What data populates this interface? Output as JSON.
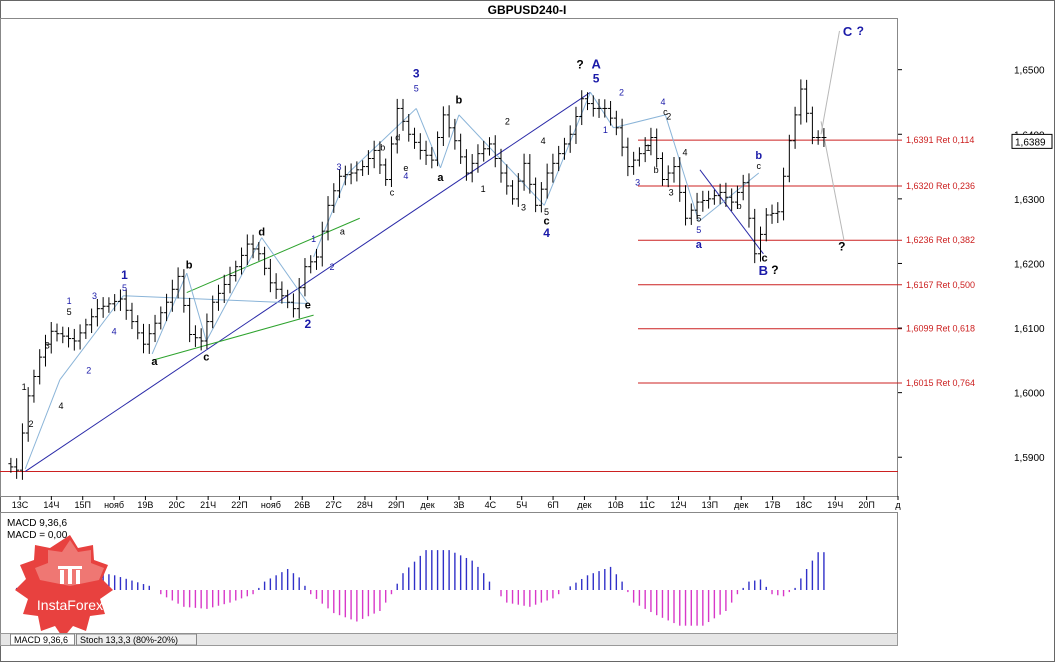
{
  "window": {
    "title": "GBPUSD240-I"
  },
  "price_panel": {
    "ylim": [
      1.584,
      1.658
    ],
    "price_ticks": [
      "1,6500",
      "1,6400",
      "1,6300",
      "1,6200",
      "1,6100",
      "1,6000",
      "1,5900"
    ],
    "current_price": "1,6389",
    "x_labels": [
      "13C",
      "14Ч",
      "15П",
      "нояб",
      "19В",
      "20С",
      "21Ч",
      "22П",
      "нояб",
      "26В",
      "27С",
      "28Ч",
      "29П",
      "дек",
      "3В",
      "4С",
      "5Ч",
      "6П",
      "дек",
      "10В",
      "11С",
      "12Ч",
      "13П",
      "дек",
      "17В",
      "18С",
      "19Ч",
      "20П",
      "д"
    ],
    "fib_levels": [
      {
        "price": 1.6391,
        "label": "1,6391 Ret 0,114"
      },
      {
        "price": 1.632,
        "label": "1,6320 Ret 0,236"
      },
      {
        "price": 1.6236,
        "label": "1,6236 Ret 0,382"
      },
      {
        "price": 1.6167,
        "label": "1,6167 Ret 0,500"
      },
      {
        "price": 1.6099,
        "label": "1,6099 Ret 0,618"
      },
      {
        "price": 1.6015,
        "label": "1,6015 Ret 0,764"
      }
    ],
    "base_level": 1.5878,
    "wave_labels": [
      {
        "text": "1",
        "bar": 0.9,
        "price": 1.6004,
        "color": "#000000",
        "size": 9
      },
      {
        "text": "2",
        "bar": 1.5,
        "price": 1.5947,
        "color": "#000000",
        "size": 9
      },
      {
        "text": "3",
        "bar": 2.9,
        "price": 1.6068,
        "color": "#000000",
        "size": 9
      },
      {
        "text": "4",
        "bar": 4.1,
        "price": 1.5975,
        "color": "#000000",
        "size": 9
      },
      {
        "text": "5",
        "bar": 4.8,
        "price": 1.612,
        "color": "#000000",
        "size": 9
      },
      {
        "text": "1",
        "bar": 4.8,
        "price": 1.6137,
        "color": "#1a1aa8",
        "size": 9
      },
      {
        "text": "2",
        "bar": 6.5,
        "price": 1.603,
        "color": "#1a1aa8",
        "size": 9
      },
      {
        "text": "3",
        "bar": 7.0,
        "price": 1.6145,
        "color": "#1a1aa8",
        "size": 9
      },
      {
        "text": "4",
        "bar": 8.7,
        "price": 1.609,
        "color": "#1a1aa8",
        "size": 9
      },
      {
        "text": "1",
        "bar": 9.6,
        "price": 1.6176,
        "color": "#1a1aa8",
        "size": 12
      },
      {
        "text": "5",
        "bar": 9.6,
        "price": 1.6157,
        "color": "#1a1aa8",
        "size": 9
      },
      {
        "text": "a",
        "bar": 12.2,
        "price": 1.6043,
        "color": "#000000",
        "size": 11
      },
      {
        "text": "b",
        "bar": 15.2,
        "price": 1.6192,
        "color": "#000000",
        "size": 11
      },
      {
        "text": "c",
        "bar": 16.7,
        "price": 1.605,
        "color": "#000000",
        "size": 11
      },
      {
        "text": "d",
        "bar": 21.5,
        "price": 1.6243,
        "color": "#000000",
        "size": 11
      },
      {
        "text": "e",
        "bar": 25.5,
        "price": 1.613,
        "color": "#000000",
        "size": 11
      },
      {
        "text": "2",
        "bar": 25.5,
        "price": 1.61,
        "color": "#1a1aa8",
        "size": 12
      },
      {
        "text": "1",
        "bar": 26.0,
        "price": 1.6233,
        "color": "#1a1aa8",
        "size": 9
      },
      {
        "text": "2",
        "bar": 27.6,
        "price": 1.619,
        "color": "#1a1aa8",
        "size": 9
      },
      {
        "text": "a",
        "bar": 28.5,
        "price": 1.6245,
        "color": "#000000",
        "size": 9
      },
      {
        "text": "3",
        "bar": 28.2,
        "price": 1.6345,
        "color": "#1a1aa8",
        "size": 9
      },
      {
        "text": "c",
        "bar": 32.8,
        "price": 1.6305,
        "color": "#000000",
        "size": 9
      },
      {
        "text": "d",
        "bar": 33.3,
        "price": 1.639,
        "color": "#000000",
        "size": 9
      },
      {
        "text": "b",
        "bar": 32.0,
        "price": 1.6375,
        "color": "#000000",
        "size": 9
      },
      {
        "text": "e",
        "bar": 34.0,
        "price": 1.6343,
        "color": "#000000",
        "size": 9
      },
      {
        "text": "4",
        "bar": 34.0,
        "price": 1.6331,
        "color": "#1a1aa8",
        "size": 9
      },
      {
        "text": "3",
        "bar": 34.9,
        "price": 1.6488,
        "color": "#1a1aa8",
        "size": 12
      },
      {
        "text": "5",
        "bar": 34.9,
        "price": 1.6466,
        "color": "#1a1aa8",
        "size": 9
      },
      {
        "text": "a",
        "bar": 37.0,
        "price": 1.6328,
        "color": "#000000",
        "size": 11
      },
      {
        "text": "b",
        "bar": 38.6,
        "price": 1.6448,
        "color": "#000000",
        "size": 11
      },
      {
        "text": "1",
        "bar": 40.7,
        "price": 1.6311,
        "color": "#000000",
        "size": 9
      },
      {
        "text": "2",
        "bar": 42.8,
        "price": 1.6415,
        "color": "#000000",
        "size": 9
      },
      {
        "text": "3",
        "bar": 44.2,
        "price": 1.6282,
        "color": "#000000",
        "size": 9
      },
      {
        "text": "4",
        "bar": 45.9,
        "price": 1.6385,
        "color": "#000000",
        "size": 9
      },
      {
        "text": "5",
        "bar": 46.2,
        "price": 1.6275,
        "color": "#000000",
        "size": 9
      },
      {
        "text": "c",
        "bar": 46.2,
        "price": 1.626,
        "color": "#000000",
        "size": 11
      },
      {
        "text": "4",
        "bar": 46.2,
        "price": 1.6241,
        "color": "#1a1aa8",
        "size": 12
      },
      {
        "text": "?",
        "bar": 49.1,
        "price": 1.6502,
        "color": "#000000",
        "size": 12
      },
      {
        "text": "A",
        "bar": 50.5,
        "price": 1.6502,
        "color": "#1a1aa8",
        "size": 13
      },
      {
        "text": "5",
        "bar": 50.5,
        "price": 1.648,
        "color": "#1a1aa8",
        "size": 12
      },
      {
        "text": "1",
        "bar": 51.3,
        "price": 1.6402,
        "color": "#1a1aa8",
        "size": 9
      },
      {
        "text": "2",
        "bar": 52.7,
        "price": 1.646,
        "color": "#1a1aa8",
        "size": 9
      },
      {
        "text": "1",
        "bar": 55.0,
        "price": 1.6374,
        "color": "#000000",
        "size": 9
      },
      {
        "text": "2",
        "bar": 56.8,
        "price": 1.6423,
        "color": "#000000",
        "size": 9
      },
      {
        "text": "3",
        "bar": 54.1,
        "price": 1.6321,
        "color": "#1a1aa8",
        "size": 9
      },
      {
        "text": "4",
        "bar": 56.3,
        "price": 1.6445,
        "color": "#1a1aa8",
        "size": 9
      },
      {
        "text": "c",
        "bar": 56.5,
        "price": 1.643,
        "color": "#000000",
        "size": 9
      },
      {
        "text": "b",
        "bar": 55.7,
        "price": 1.634,
        "color": "#000000",
        "size": 9
      },
      {
        "text": "3",
        "bar": 57.0,
        "price": 1.6305,
        "color": "#000000",
        "size": 9
      },
      {
        "text": "4",
        "bar": 58.2,
        "price": 1.6367,
        "color": "#000000",
        "size": 9
      },
      {
        "text": "5",
        "bar": 59.4,
        "price": 1.6265,
        "color": "#000000",
        "size": 9
      },
      {
        "text": "5",
        "bar": 59.4,
        "price": 1.6247,
        "color": "#1a1aa8",
        "size": 9
      },
      {
        "text": "a",
        "bar": 59.4,
        "price": 1.6224,
        "color": "#1a1aa8",
        "size": 11
      },
      {
        "text": "b",
        "bar": 62.9,
        "price": 1.6284,
        "color": "#000000",
        "size": 9
      },
      {
        "text": "c",
        "bar": 64.6,
        "price": 1.6346,
        "color": "#000000",
        "size": 9
      },
      {
        "text": "b",
        "bar": 64.6,
        "price": 1.6362,
        "color": "#1a1aa8",
        "size": 11
      },
      {
        "text": "c",
        "bar": 65.1,
        "price": 1.6203,
        "color": "#000000",
        "size": 11
      },
      {
        "text": "B",
        "bar": 65.0,
        "price": 1.6182,
        "color": "#1a1aa8",
        "size": 13
      },
      {
        "text": "?",
        "bar": 66.0,
        "price": 1.6184,
        "color": "#000000",
        "size": 12
      },
      {
        "text": "?",
        "bar": 71.8,
        "price": 1.622,
        "color": "#000000",
        "size": 12
      },
      {
        "text": "C",
        "bar": 72.3,
        "price": 1.6552,
        "color": "#1a1aa8",
        "size": 13
      },
      {
        "text": "?",
        "bar": 73.4,
        "price": 1.6554,
        "color": "#1a1aa8",
        "size": 12
      }
    ]
  },
  "macd_panel": {
    "label_macd": "MACD 9,36,6",
    "label_zero": "MACD = 0,00",
    "ylim": [
      -1,
      1
    ]
  },
  "brand": {
    "name": "InstaForex",
    "colors": {
      "dark": "#d7262b",
      "light": "#f2807c"
    }
  },
  "bottom_tabs": [
    "MACD 9,36,6",
    "Stoch 13,3,3 (80%-20%)"
  ],
  "colors": {
    "bars": "#000000",
    "fib": "#cc2020",
    "channel": "#2a2aa8",
    "wave_blue": "#1a1aa8",
    "green": "#2ea32e",
    "light_path": "#8ab4d8",
    "hist_pos": "#3030c8",
    "hist_neg": "#d838c8"
  },
  "chart_data": {
    "type": "ohlc",
    "title": "GBPUSD240-I",
    "ylim": [
      1.584,
      1.658
    ],
    "x_tick_labels": [
      "13C",
      "14Ч",
      "15П",
      "нояб",
      "19В",
      "20С",
      "21Ч",
      "22П",
      "нояб",
      "26В",
      "27С",
      "28Ч",
      "29П",
      "дек",
      "3В",
      "4С",
      "5Ч",
      "6П",
      "дек",
      "10В",
      "11С",
      "12Ч",
      "13П",
      "дек",
      "17В",
      "18С",
      "19Ч",
      "20П",
      "д"
    ],
    "anchors": [
      [
        0,
        1.589
      ],
      [
        1,
        1.588
      ],
      [
        2,
        1.5995
      ],
      [
        3,
        1.6055
      ],
      [
        4,
        1.6095
      ],
      [
        6,
        1.608
      ],
      [
        8,
        1.613
      ],
      [
        10,
        1.6145
      ],
      [
        12,
        1.6075
      ],
      [
        14,
        1.614
      ],
      [
        15,
        1.618
      ],
      [
        16,
        1.609
      ],
      [
        17,
        1.608
      ],
      [
        18,
        1.614
      ],
      [
        20,
        1.6195
      ],
      [
        21,
        1.623
      ],
      [
        22,
        1.6215
      ],
      [
        23,
        1.617
      ],
      [
        24,
        1.615
      ],
      [
        25,
        1.613
      ],
      [
        26,
        1.6195
      ],
      [
        27,
        1.621
      ],
      [
        28,
        1.629
      ],
      [
        29,
        1.6335
      ],
      [
        30,
        1.634
      ],
      [
        31,
        1.635
      ],
      [
        32,
        1.6375
      ],
      [
        33,
        1.633
      ],
      [
        34,
        1.644
      ],
      [
        35,
        1.64
      ],
      [
        36,
        1.6375
      ],
      [
        37,
        1.636
      ],
      [
        38,
        1.643
      ],
      [
        39,
        1.639
      ],
      [
        40,
        1.634
      ],
      [
        41,
        1.637
      ],
      [
        42,
        1.6385
      ],
      [
        43,
        1.634
      ],
      [
        44,
        1.63
      ],
      [
        45,
        1.6355
      ],
      [
        46,
        1.629
      ],
      [
        47,
        1.634
      ],
      [
        48,
        1.637
      ],
      [
        49,
        1.64
      ],
      [
        50,
        1.6455
      ],
      [
        51,
        1.644
      ],
      [
        52,
        1.644
      ],
      [
        53,
        1.641
      ],
      [
        54,
        1.635
      ],
      [
        55,
        1.637
      ],
      [
        56,
        1.6395
      ],
      [
        57,
        1.633
      ],
      [
        58,
        1.635
      ],
      [
        59,
        1.627
      ],
      [
        60,
        1.6295
      ],
      [
        61,
        1.63
      ],
      [
        62,
        1.631
      ],
      [
        63,
        1.6295
      ],
      [
        64,
        1.6325
      ],
      [
        65,
        1.6215
      ],
      [
        66,
        1.6275
      ],
      [
        67,
        1.628
      ],
      [
        68,
        1.639
      ],
      [
        69,
        1.647
      ],
      [
        70,
        1.6395
      ]
    ],
    "last_bar": 70,
    "total_slots": 77,
    "macd": {
      "label": "MACD 9,36,6",
      "anchors": [
        [
          0,
          0
        ],
        [
          3,
          0.3
        ],
        [
          6,
          0.5
        ],
        [
          9,
          0.35
        ],
        [
          12,
          0.1
        ],
        [
          13,
          -0.1
        ],
        [
          15,
          -0.4
        ],
        [
          17,
          -0.45
        ],
        [
          19,
          -0.3
        ],
        [
          21,
          -0.1
        ],
        [
          22,
          0.2
        ],
        [
          24,
          0.5
        ],
        [
          25,
          0.3
        ],
        [
          26,
          -0.1
        ],
        [
          28,
          -0.55
        ],
        [
          30,
          -0.75
        ],
        [
          32,
          -0.5
        ],
        [
          33,
          -0.1
        ],
        [
          34,
          0.4
        ],
        [
          36,
          0.95
        ],
        [
          38,
          0.95
        ],
        [
          40,
          0.7
        ],
        [
          41,
          0.4
        ],
        [
          42,
          0.0
        ],
        [
          43,
          -0.3
        ],
        [
          45,
          -0.4
        ],
        [
          47,
          -0.2
        ],
        [
          48,
          0.0
        ],
        [
          50,
          0.35
        ],
        [
          52,
          0.55
        ],
        [
          53,
          0.2
        ],
        [
          54,
          -0.3
        ],
        [
          56,
          -0.6
        ],
        [
          58,
          -0.85
        ],
        [
          60,
          -0.85
        ],
        [
          62,
          -0.5
        ],
        [
          63,
          -0.1
        ],
        [
          64,
          0.2
        ],
        [
          65,
          0.25
        ],
        [
          66,
          -0.1
        ],
        [
          67,
          -0.15
        ],
        [
          68,
          0.05
        ],
        [
          69,
          0.5
        ],
        [
          70,
          0.9
        ]
      ]
    }
  }
}
